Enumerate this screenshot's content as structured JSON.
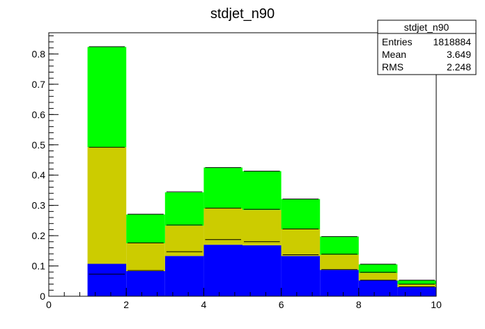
{
  "chart_data": {
    "type": "bar",
    "title": "stdjet_n90",
    "xlabel": "",
    "ylabel": "",
    "xlim": [
      0,
      10
    ],
    "ylim": [
      0,
      0.87
    ],
    "x_ticks": [
      "0",
      "2",
      "4",
      "6",
      "8",
      "10"
    ],
    "y_ticks": [
      "0",
      "0.1",
      "0.2",
      "0.3",
      "0.4",
      "0.5",
      "0.6",
      "0.7",
      "0.8"
    ],
    "bin_edges": [
      0,
      1,
      2,
      3,
      4,
      5,
      6,
      7,
      8,
      9,
      10
    ],
    "stacked": true,
    "series": [
      {
        "color": "#0000ff",
        "values": [
          0,
          0.107,
          0.083,
          0.133,
          0.17,
          0.168,
          0.133,
          0.087,
          0.052,
          0.03
        ]
      },
      {
        "color": "#cccc00",
        "values": [
          0,
          0.385,
          0.092,
          0.1,
          0.12,
          0.117,
          0.088,
          0.05,
          0.025,
          0.01
        ]
      },
      {
        "color": "#00ff00",
        "values": [
          0,
          0.331,
          0.095,
          0.11,
          0.135,
          0.128,
          0.1,
          0.06,
          0.028,
          0.012
        ]
      }
    ],
    "markers": [
      [
        0,
        0.073,
        0.085,
        0.147,
        0.187,
        0.18,
        0.137,
        0.088,
        0.053,
        0.031
      ],
      [
        0,
        0.492,
        0.176,
        0.235,
        0.291,
        0.287,
        0.222,
        0.139,
        0.079,
        0.04
      ],
      [
        0,
        0.824,
        0.271,
        0.345,
        0.425,
        0.413,
        0.321,
        0.197,
        0.106,
        0.053
      ]
    ],
    "legend": {
      "title": "stdjet_n90",
      "rows": [
        {
          "label": "Entries",
          "value": "1818884"
        },
        {
          "label": "Mean",
          "value": "3.649"
        },
        {
          "label": "RMS",
          "value": "2.248"
        }
      ],
      "placement": "top-right"
    }
  }
}
